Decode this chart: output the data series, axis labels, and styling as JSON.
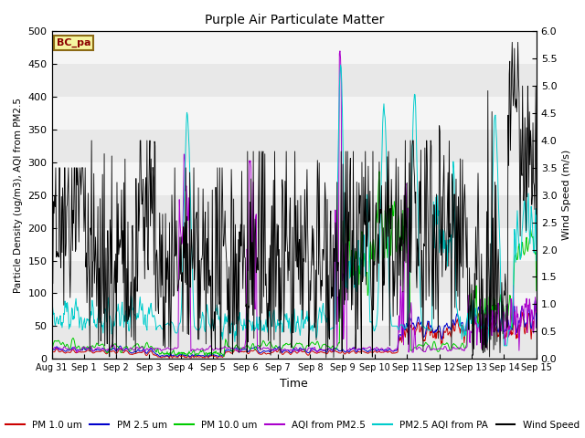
{
  "title": "Purple Air Particulate Matter",
  "ylabel_left": "Particle Density (ug/m3), AQI from PM2.5",
  "ylabel_right": "Wind Speed (m/s)",
  "xlabel": "Time",
  "annotation_text": "BC_pa",
  "ylim_left": [
    0,
    500
  ],
  "ylim_right": [
    0,
    6.0
  ],
  "yticks_left": [
    0,
    50,
    100,
    150,
    200,
    250,
    300,
    350,
    400,
    450,
    500
  ],
  "yticks_right": [
    0.0,
    0.5,
    1.0,
    1.5,
    2.0,
    2.5,
    3.0,
    3.5,
    4.0,
    4.5,
    5.0,
    5.5,
    6.0
  ],
  "xtick_labels": [
    "Aug 31",
    "Sep 1",
    "Sep 2",
    "Sep 3",
    "Sep 4",
    "Sep 5",
    "Sep 6",
    "Sep 7",
    "Sep 8",
    "Sep 9",
    "Sep 10",
    "Sep 11",
    "Sep 12",
    "Sep 13",
    "Sep 14",
    "Sep 15"
  ],
  "colors": {
    "pm1": "#cc0000",
    "pm25": "#0000cc",
    "pm10": "#00cc00",
    "aqi_pm25": "#aa00cc",
    "aqi_pa": "#00cccc",
    "wind": "#000000"
  },
  "legend_labels": [
    "PM 1.0 um",
    "PM 2.5 um",
    "PM 10.0 um",
    "AQI from PM2.5",
    "PM2.5 AQI from PA",
    "Wind Speed"
  ],
  "band_colors": [
    "#e8e8e8",
    "#f5f5f5"
  ],
  "seed": 42,
  "n_points": 840
}
